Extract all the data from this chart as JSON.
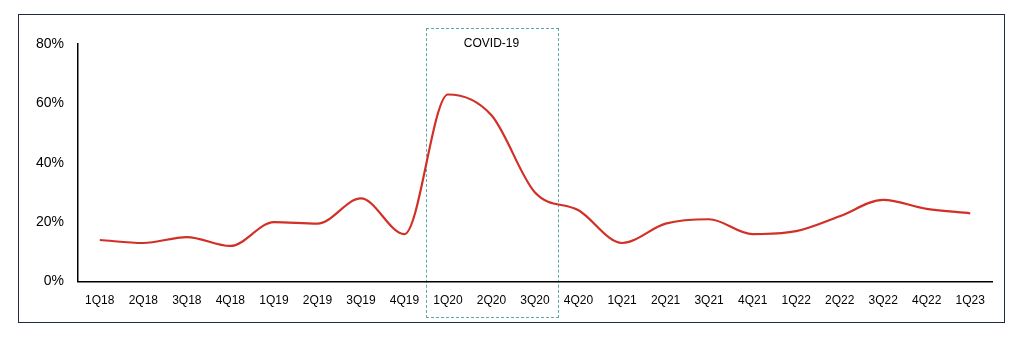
{
  "chart_data": {
    "type": "line",
    "categories": [
      "1Q18",
      "2Q18",
      "3Q18",
      "4Q18",
      "1Q19",
      "2Q19",
      "3Q19",
      "4Q19",
      "1Q20",
      "2Q20",
      "3Q20",
      "4Q20",
      "1Q21",
      "2Q21",
      "3Q21",
      "4Q21",
      "1Q22",
      "2Q22",
      "3Q22",
      "4Q22",
      "1Q23"
    ],
    "series": [
      {
        "color": "#d22f27",
        "values": [
          14,
          13,
          15,
          12,
          20,
          19.5,
          28,
          16,
          63,
          56,
          30,
          24,
          13,
          19.5,
          21,
          16,
          17,
          22,
          27.5,
          24.5,
          23
        ]
      }
    ],
    "ylim": [
      0,
      80
    ],
    "yticks": [
      {
        "value": 0,
        "label": "0%"
      },
      {
        "value": 20,
        "label": "20%"
      },
      {
        "value": 40,
        "label": "40%"
      },
      {
        "value": 60,
        "label": "60%"
      },
      {
        "value": 80,
        "label": "80%"
      }
    ],
    "grid": false,
    "legend": false,
    "marker": "none",
    "line_style": "solid",
    "annotations": [
      "COVID-19"
    ]
  }
}
